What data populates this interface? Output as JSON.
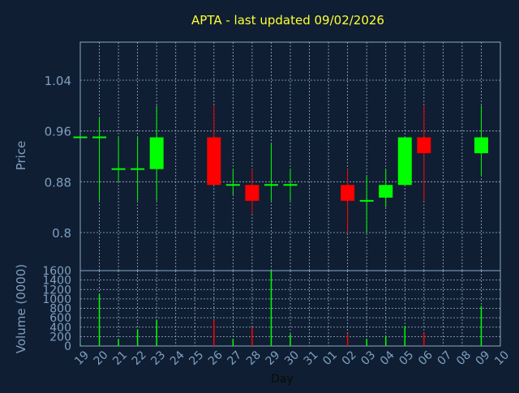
{
  "colors": {
    "background": "#0f1e32",
    "plot_border": "#8aa8c8",
    "grid": "#9fb4c8",
    "title": "#ffff33",
    "axis_text": "#7f9fc0",
    "xlabel": "#0a0a0a",
    "up": "#00ff00",
    "down": "#ff0000",
    "doji": "#00ff00"
  },
  "chart_data": [
    {
      "type": "candlestick",
      "title": "APTA - last updated 09/02/2026",
      "ylabel": "Price",
      "ylim": [
        0.74,
        1.1
      ],
      "yticks": [
        0.8,
        0.88,
        0.96,
        1.04
      ],
      "ytick_labels": [
        "0.8",
        "0.88",
        "0.96",
        "1.04"
      ],
      "grid": true,
      "categories": [
        "19",
        "20",
        "21",
        "22",
        "23",
        "24",
        "25",
        "26",
        "27",
        "28",
        "29",
        "30",
        "31",
        "01",
        "02",
        "03",
        "04",
        "05",
        "06",
        "07",
        "08",
        "09",
        "10"
      ],
      "candles": [
        {
          "day": "19",
          "open": 0.95,
          "high": 0.95,
          "low": 0.95,
          "close": 0.95
        },
        {
          "day": "20",
          "open": 0.95,
          "high": 0.98,
          "low": 0.85,
          "close": 0.95
        },
        {
          "day": "21",
          "open": 0.9,
          "high": 0.95,
          "low": 0.88,
          "close": 0.9
        },
        {
          "day": "22",
          "open": 0.9,
          "high": 0.95,
          "low": 0.85,
          "close": 0.9
        },
        {
          "day": "23",
          "open": 0.9,
          "high": 1.0,
          "low": 0.85,
          "close": 0.95
        },
        {
          "day": "26",
          "open": 0.95,
          "high": 1.0,
          "low": 0.875,
          "close": 0.875
        },
        {
          "day": "27",
          "open": 0.875,
          "high": 0.9,
          "low": 0.86,
          "close": 0.875
        },
        {
          "day": "28",
          "open": 0.875,
          "high": 0.9,
          "low": 0.83,
          "close": 0.85
        },
        {
          "day": "29",
          "open": 0.875,
          "high": 0.94,
          "low": 0.85,
          "close": 0.875
        },
        {
          "day": "30",
          "open": 0.875,
          "high": 0.9,
          "low": 0.85,
          "close": 0.875
        },
        {
          "day": "02",
          "open": 0.875,
          "high": 0.9,
          "low": 0.8,
          "close": 0.85
        },
        {
          "day": "03",
          "open": 0.85,
          "high": 0.89,
          "low": 0.8,
          "close": 0.85
        },
        {
          "day": "04",
          "open": 0.855,
          "high": 0.9,
          "low": 0.84,
          "close": 0.875
        },
        {
          "day": "05",
          "open": 0.875,
          "high": 0.95,
          "low": 0.875,
          "close": 0.95
        },
        {
          "day": "06",
          "open": 0.95,
          "high": 1.0,
          "low": 0.85,
          "close": 0.925
        },
        {
          "day": "09",
          "open": 0.925,
          "high": 1.0,
          "low": 0.89,
          "close": 0.95
        }
      ]
    },
    {
      "type": "bar",
      "ylabel": "Volume (0000)",
      "xlabel": "Day",
      "ylim": [
        0,
        1600
      ],
      "yticks": [
        0,
        200,
        400,
        600,
        800,
        1000,
        1200,
        1400,
        1600
      ],
      "ytick_labels": [
        "0",
        "200",
        "400",
        "600",
        "800",
        "1000",
        "1200",
        "1400",
        "1600"
      ],
      "grid": true,
      "categories": [
        "19",
        "20",
        "21",
        "22",
        "23",
        "24",
        "25",
        "26",
        "27",
        "28",
        "29",
        "30",
        "31",
        "01",
        "02",
        "03",
        "04",
        "05",
        "06",
        "07",
        "08",
        "09",
        "10"
      ],
      "bars": [
        {
          "day": "19",
          "value": 30,
          "dir": "up"
        },
        {
          "day": "20",
          "value": 1100,
          "dir": "up"
        },
        {
          "day": "21",
          "value": 150,
          "dir": "up"
        },
        {
          "day": "22",
          "value": 350,
          "dir": "up"
        },
        {
          "day": "23",
          "value": 550,
          "dir": "up"
        },
        {
          "day": "26",
          "value": 550,
          "dir": "down"
        },
        {
          "day": "27",
          "value": 150,
          "dir": "up"
        },
        {
          "day": "28",
          "value": 400,
          "dir": "down"
        },
        {
          "day": "29",
          "value": 1600,
          "dir": "up"
        },
        {
          "day": "30",
          "value": 250,
          "dir": "up"
        },
        {
          "day": "02",
          "value": 250,
          "dir": "down"
        },
        {
          "day": "03",
          "value": 150,
          "dir": "up"
        },
        {
          "day": "04",
          "value": 220,
          "dir": "up"
        },
        {
          "day": "05",
          "value": 420,
          "dir": "up"
        },
        {
          "day": "06",
          "value": 280,
          "dir": "down"
        },
        {
          "day": "09",
          "value": 850,
          "dir": "up"
        }
      ]
    }
  ]
}
